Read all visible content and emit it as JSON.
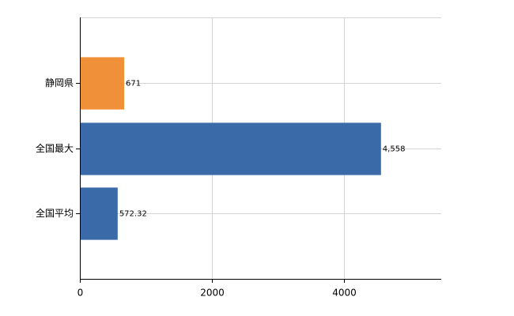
{
  "chart_data": {
    "type": "bar",
    "orientation": "horizontal",
    "categories": [
      "静岡県",
      "全国最大",
      "全国平均"
    ],
    "values": [
      671,
      4558,
      572.32
    ],
    "value_labels": [
      "671",
      "4,558",
      "572.32"
    ],
    "colors": [
      "#f0913a",
      "#3b6aa8",
      "#3b6aa8"
    ],
    "xlim": [
      0,
      5470
    ],
    "xticks": [
      0,
      2000,
      4000
    ],
    "grid": true
  }
}
